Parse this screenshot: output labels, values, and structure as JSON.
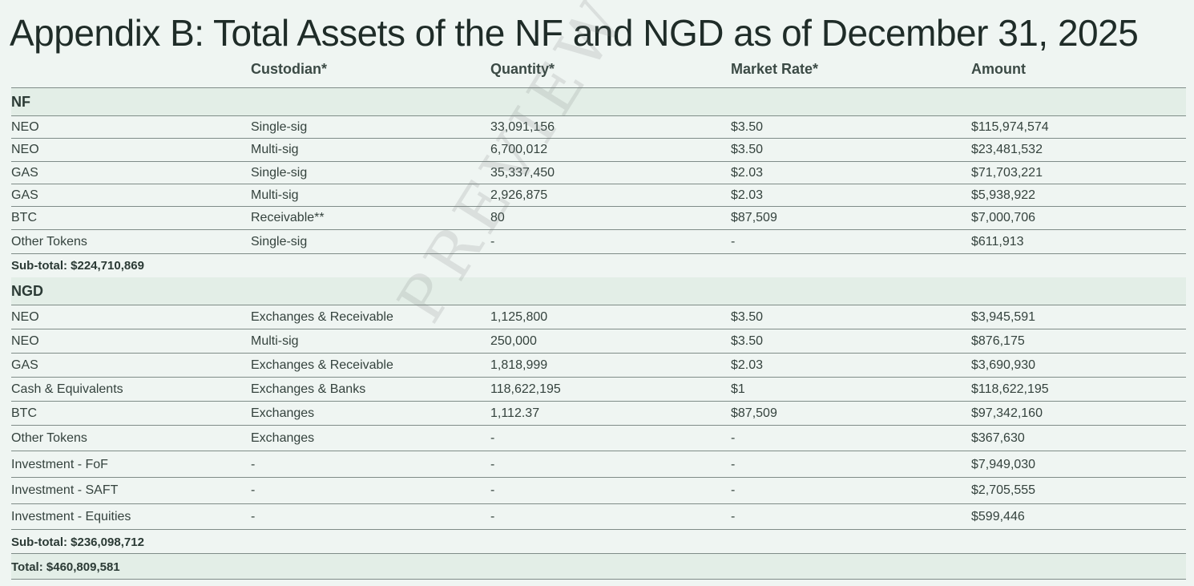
{
  "title": "Appendix B: Total Assets of the NF and NGD as of December 31, 2025",
  "watermark": "PREVIEW",
  "headers": [
    "",
    "Custodian*",
    "Quantity*",
    "Market Rate*",
    "Amount"
  ],
  "nf": {
    "label": "NF",
    "rows": [
      {
        "asset": "NEO",
        "custodian": "Single-sig",
        "quantity": "33,091,156",
        "rate": "$3.50",
        "amount": "$115,974,574"
      },
      {
        "asset": "NEO",
        "custodian": "Multi-sig",
        "quantity": "6,700,012",
        "rate": "$3.50",
        "amount": "$23,481,532"
      },
      {
        "asset": "GAS",
        "custodian": "Single-sig",
        "quantity": "35,337,450",
        "rate": "$2.03",
        "amount": "$71,703,221"
      },
      {
        "asset": "GAS",
        "custodian": "Multi-sig",
        "quantity": "2,926,875",
        "rate": "$2.03",
        "amount": "$5,938,922"
      },
      {
        "asset": "BTC",
        "custodian": "Receivable**",
        "quantity": "80",
        "rate": "$87,509",
        "amount": "$7,000,706"
      },
      {
        "asset": "Other Tokens",
        "custodian": "Single-sig",
        "quantity": "-",
        "rate": "-",
        "amount": "$611,913"
      }
    ],
    "subtotal": "Sub-total: $224,710,869"
  },
  "ngd": {
    "label": "NGD",
    "rows": [
      {
        "asset": "NEO",
        "custodian": "Exchanges & Receivable",
        "quantity": "1,125,800",
        "rate": "$3.50",
        "amount": "$3,945,591"
      },
      {
        "asset": "NEO",
        "custodian": "Multi-sig",
        "quantity": "250,000",
        "rate": "$3.50",
        "amount": "$876,175"
      },
      {
        "asset": "GAS",
        "custodian": "Exchanges & Receivable",
        "quantity": "1,818,999",
        "rate": "$2.03",
        "amount": "$3,690,930"
      },
      {
        "asset": "Cash & Equivalents",
        "custodian": "Exchanges & Banks",
        "quantity": "118,622,195",
        "rate": "$1",
        "amount": "$118,622,195"
      },
      {
        "asset": "BTC",
        "custodian": "Exchanges",
        "quantity": "1,112.37",
        "rate": "$87,509",
        "amount": "$97,342,160"
      },
      {
        "asset": "Other Tokens",
        "custodian": "Exchanges",
        "quantity": "-",
        "rate": "-",
        "amount": "$367,630"
      },
      {
        "asset": "Investment - FoF",
        "custodian": "-",
        "quantity": "-",
        "rate": "-",
        "amount": "$7,949,030"
      },
      {
        "asset": "Investment - SAFT",
        "custodian": "-",
        "quantity": "-",
        "rate": "-",
        "amount": "$2,705,555"
      },
      {
        "asset": "Investment - Equities",
        "custodian": "-",
        "quantity": "-",
        "rate": "-",
        "amount": "$599,446"
      }
    ],
    "subtotal": "Sub-total: $236,098,712"
  },
  "total": "Total: $460,809,581"
}
